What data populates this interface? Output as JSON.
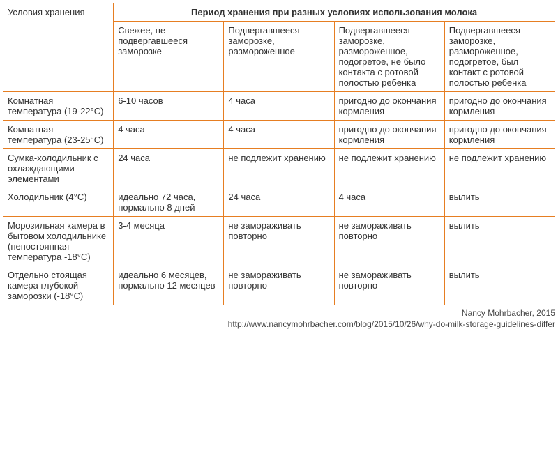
{
  "table": {
    "border_color": "#e67e22",
    "background_color": "#ffffff",
    "text_color": "#333333",
    "font_size_pt": 10,
    "header_row_label": "Условия хранения",
    "main_header": "Период хранения при разных условиях использования молока",
    "sub_headers": [
      "Свежее, не подвергавшееся заморозке",
      "Подвергавшееся заморозке, размороженное",
      "Подвергавшееся заморозке, размороженное, подогретое, не было контакта с ротовой полостью ребенка",
      "Подвергавшееся заморозке, размороженное, подогретое, был контакт с ротовой полостью ребенка"
    ],
    "rows": [
      {
        "label": "Комнатная температура (19-22°C)",
        "cells": [
          "6-10 часов",
          "4 часа",
          "пригодно до окончания кормления",
          "пригодно до окончания кормления"
        ]
      },
      {
        "label": "Комнатная температура (23-25°C)",
        "cells": [
          "4 часа",
          "4 часа",
          "пригодно до окончания кормления",
          "пригодно до окончания кормления"
        ]
      },
      {
        "label": "Сумка-холодильник с охлаждающими элементами",
        "cells": [
          "24 часа",
          "не подлежит хранению",
          "не подлежит хранению",
          "не подлежит хранению"
        ]
      },
      {
        "label": "Холодильник (4°C)",
        "cells": [
          "идеально 72 часа, нормально 8 дней",
          "24 часа",
          "4 часа",
          "вылить"
        ]
      },
      {
        "label": "Морозильная камера в бытовом холодильнике (непостоянная температура -18°C)",
        "cells": [
          "3-4 месяца",
          "не замораживать повторно",
          "не замораживать повторно",
          "вылить"
        ]
      },
      {
        "label": "Отдельно стоящая камера глубокой заморозки (-18°C)",
        "cells": [
          "идеально 6 месяцев, нормально 12 месяцев",
          "не замораживать повторно",
          "не замораживать повторно",
          "вылить"
        ]
      }
    ]
  },
  "credit": {
    "author": "Nancy Mohrbacher, 2015",
    "url": "http://www.nancymohrbacher.com/blog/2015/10/26/why-do-milk-storage-guidelines-differ"
  }
}
